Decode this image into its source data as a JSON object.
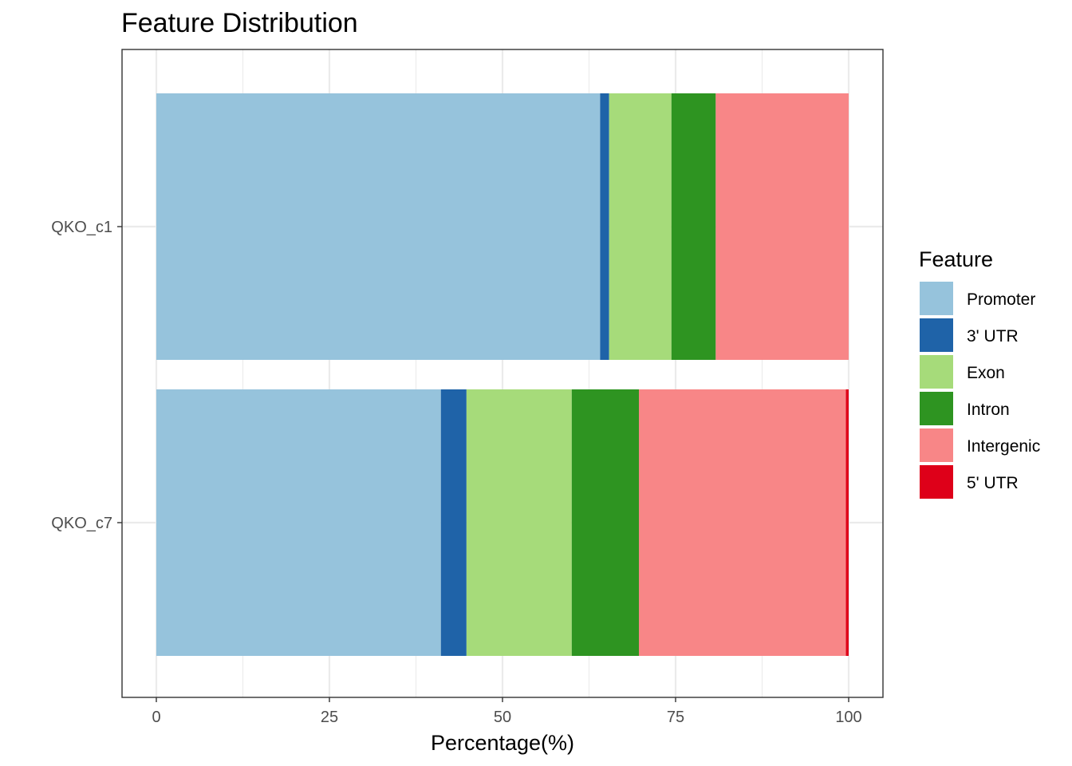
{
  "chart_data": {
    "type": "bar",
    "orientation": "horizontal",
    "stacked": true,
    "title": "Feature Distribution",
    "xlabel": "Percentage(%)",
    "ylabel": "",
    "xlim": [
      0,
      100
    ],
    "xticks": [
      "0",
      "25",
      "50",
      "75",
      "100"
    ],
    "categories": [
      "QKO_c1",
      "QKO_c7"
    ],
    "series": [
      {
        "name": "Promoter",
        "color": "#96C3DC",
        "values": [
          64.1,
          41.1
        ]
      },
      {
        "name": "3' UTR",
        "color": "#1F63A8",
        "values": [
          1.3,
          3.7
        ]
      },
      {
        "name": "Exon",
        "color": "#A6DB7A",
        "values": [
          9.0,
          15.2
        ]
      },
      {
        "name": "Intron",
        "color": "#2E9421",
        "values": [
          6.4,
          9.7
        ]
      },
      {
        "name": "Intergenic",
        "color": "#F88687",
        "values": [
          19.2,
          29.9
        ]
      },
      {
        "name": "5' UTR",
        "color": "#DE0019",
        "values": [
          0.0,
          0.4
        ]
      }
    ],
    "legend": {
      "title": "Feature",
      "position": "right"
    },
    "grid": true
  }
}
